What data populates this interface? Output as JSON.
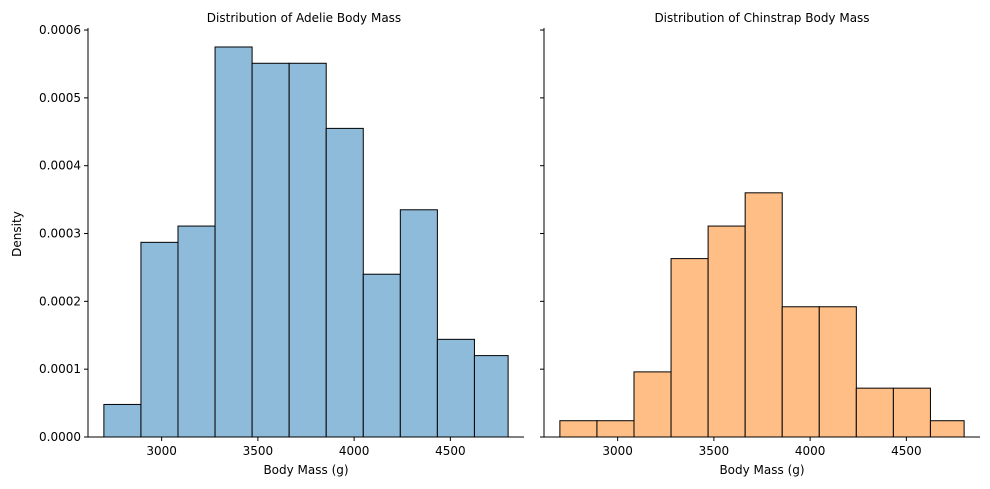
{
  "chart_data": [
    {
      "type": "bar",
      "title": "Distribution of Adelie Body Mass",
      "xlabel": "Body Mass (g)",
      "ylabel": "Density",
      "xlim": [
        2617.5,
        4882.5
      ],
      "ylim": [
        0,
        0.000603
      ],
      "xticks": [
        "3000",
        "3500",
        "4000",
        "4500"
      ],
      "xtick_values": [
        3000,
        3500,
        4000,
        4500
      ],
      "yticks": [
        "0.0000",
        "0.0001",
        "0.0002",
        "0.0003",
        "0.0004",
        "0.0005",
        "0.0006"
      ],
      "ytick_values": [
        0,
        0.0001,
        0.0002,
        0.0003,
        0.0004,
        0.0005,
        0.0006
      ],
      "bin_edges": [
        2700,
        2892.5,
        3085,
        3277.5,
        3470,
        3662.5,
        3855,
        4047.5,
        4240,
        4432.5,
        4625,
        4800
      ],
      "values": [
        4.8e-05,
        0.000287,
        0.000311,
        0.000575,
        0.000551,
        0.000551,
        0.000455,
        0.00024,
        0.000335,
        0.000144,
        0.00012
      ],
      "color": "#8fbbda",
      "grid": false
    },
    {
      "type": "bar",
      "title": "Distribution of Chinstrap Body Mass",
      "xlabel": "Body Mass (g)",
      "ylabel": "",
      "xlim": [
        2617.5,
        4882.5
      ],
      "ylim": [
        0,
        0.000603
      ],
      "xticks": [
        "3000",
        "3500",
        "4000",
        "4500"
      ],
      "xtick_values": [
        3000,
        3500,
        4000,
        4500
      ],
      "bin_edges": [
        2700,
        2892.5,
        3085,
        3277.5,
        3470,
        3662.5,
        3855,
        4047.5,
        4240,
        4432.5,
        4625,
        4800
      ],
      "values": [
        2.4e-05,
        2.4e-05,
        9.6e-05,
        0.000263,
        0.000311,
        0.00036,
        0.000192,
        0.000192,
        7.2e-05,
        7.2e-05,
        2.4e-05
      ],
      "color": "#ffbe86",
      "grid": false
    }
  ]
}
